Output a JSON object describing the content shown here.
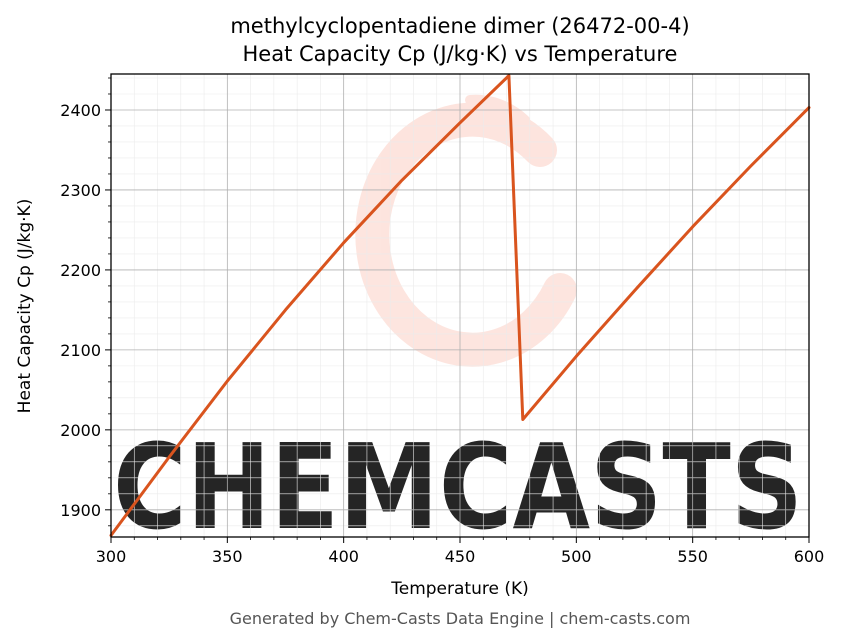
{
  "chart_data": {
    "type": "line",
    "title": "methylcyclopentadiene dimer (26472-00-4)",
    "subtitle": "Heat Capacity Cp (J/kg·K) vs Temperature",
    "xlabel": "Temperature (K)",
    "ylabel": "Heat Capacity Cp (J/kg·K)",
    "xlim": [
      300,
      600
    ],
    "ylim": [
      1866,
      2445
    ],
    "xticks": [
      "300",
      "350",
      "400",
      "450",
      "500",
      "550",
      "600"
    ],
    "yticks": [
      "1900",
      "2000",
      "2100",
      "2200",
      "2300",
      "2400"
    ],
    "grid": true,
    "line_color": "#d9541e",
    "series": [
      {
        "x": [
          300,
          325,
          350,
          375,
          400,
          425,
          450,
          471,
          477,
          500,
          525,
          550,
          575,
          600
        ],
        "y": [
          1868,
          1966,
          2061,
          2150,
          2234,
          2312,
          2384,
          2443,
          2013,
          2092,
          2174,
          2254,
          2330,
          2403
        ]
      }
    ]
  },
  "watermark": {
    "text": "CHEMCASTS",
    "color": "#fde0d9"
  },
  "footer": "Generated by Chem-Casts Data Engine | chem-casts.com"
}
